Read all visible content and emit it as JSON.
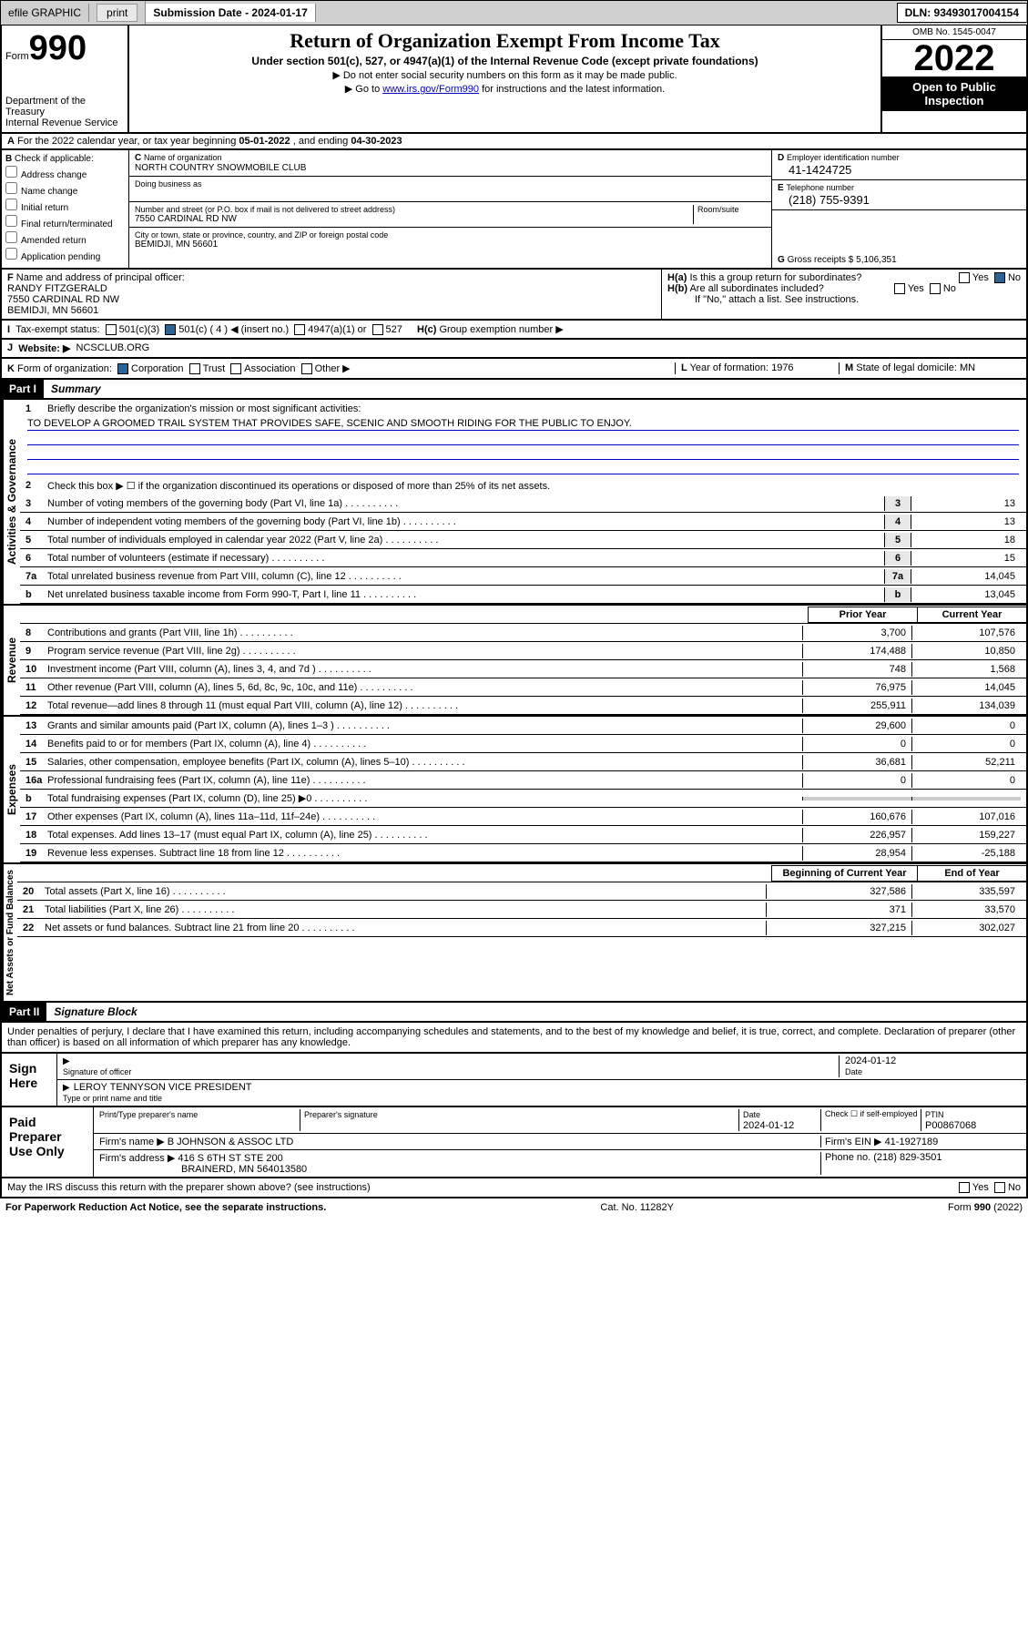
{
  "top": {
    "efile": "efile GRAPHIC",
    "print": "print",
    "submission": "Submission Date - 2024-01-17",
    "dln": "DLN: 93493017004154"
  },
  "header": {
    "form_word": "Form",
    "form_num": "990",
    "title": "Return of Organization Exempt From Income Tax",
    "subtitle": "Under section 501(c), 527, or 4947(a)(1) of the Internal Revenue Code (except private foundations)",
    "instr1": "▶ Do not enter social security numbers on this form as it may be made public.",
    "instr2_pre": "▶ Go to ",
    "instr2_link": "www.irs.gov/Form990",
    "instr2_post": " for instructions and the latest information.",
    "dept": "Department of the Treasury",
    "irs": "Internal Revenue Service",
    "omb": "OMB No. 1545-0047",
    "year": "2022",
    "inspection": "Open to Public Inspection"
  },
  "A": {
    "label": "For the 2022 calendar year, or tax year beginning ",
    "begin": "05-01-2022",
    "mid": " , and ending ",
    "end": "04-30-2023"
  },
  "B": {
    "label": "Check if applicable:",
    "opts": [
      "Address change",
      "Name change",
      "Initial return",
      "Final return/terminated",
      "Amended return",
      "Application pending"
    ]
  },
  "C": {
    "name_lbl": "Name of organization",
    "name": "NORTH COUNTRY SNOWMOBILE CLUB",
    "dba_lbl": "Doing business as",
    "street_lbl": "Number and street (or P.O. box if mail is not delivered to street address)",
    "room_lbl": "Room/suite",
    "street": "7550 CARDINAL RD NW",
    "city_lbl": "City or town, state or province, country, and ZIP or foreign postal code",
    "city": "BEMIDJI, MN  56601"
  },
  "D": {
    "lbl": "Employer identification number",
    "val": "41-1424725"
  },
  "E": {
    "lbl": "Telephone number",
    "val": "(218) 755-9391"
  },
  "G": {
    "lbl": "Gross receipts $",
    "val": "5,106,351"
  },
  "F": {
    "lbl": "Name and address of principal officer:",
    "name": "RANDY FITZGERALD",
    "street": "7550 CARDINAL RD NW",
    "city": "BEMIDJI, MN  56601"
  },
  "H": {
    "a": "Is this a group return for subordinates?",
    "b": "Are all subordinates included?",
    "b2": "If \"No,\" attach a list. See instructions.",
    "c": "Group exemption number ▶"
  },
  "I": {
    "lbl": "Tax-exempt status:",
    "opts": [
      "501(c)(3)",
      "501(c) ( 4 ) ◀ (insert no.)",
      "4947(a)(1) or",
      "527"
    ]
  },
  "J": {
    "lbl": "Website: ▶",
    "val": "NCSCLUB.ORG"
  },
  "K": {
    "lbl": "Form of organization:",
    "opts": [
      "Corporation",
      "Trust",
      "Association",
      "Other ▶"
    ]
  },
  "L": {
    "lbl": "Year of formation:",
    "val": "1976"
  },
  "M": {
    "lbl": "State of legal domicile:",
    "val": "MN"
  },
  "part1": {
    "hdr": "Part I",
    "title": "Summary",
    "q1": "Briefly describe the organization's mission or most significant activities:",
    "mission": "TO DEVELOP A GROOMED TRAIL SYSTEM THAT PROVIDES SAFE, SCENIC AND SMOOTH RIDING FOR THE PUBLIC TO ENJOY.",
    "q2": "Check this box ▶ ☐  if the organization discontinued its operations or disposed of more than 25% of its net assets.",
    "vert1": "Activities & Governance",
    "vert2": "Revenue",
    "vert3": "Expenses",
    "vert4": "Net Assets or Fund Balances",
    "col_prior": "Prior Year",
    "col_current": "Current Year",
    "col_begin": "Beginning of Current Year",
    "col_end": "End of Year",
    "lines_gov": [
      {
        "n": "3",
        "t": "Number of voting members of the governing body (Part VI, line 1a)",
        "v": "13"
      },
      {
        "n": "4",
        "t": "Number of independent voting members of the governing body (Part VI, line 1b)",
        "v": "13"
      },
      {
        "n": "5",
        "t": "Total number of individuals employed in calendar year 2022 (Part V, line 2a)",
        "v": "18"
      },
      {
        "n": "6",
        "t": "Total number of volunteers (estimate if necessary)",
        "v": "15"
      },
      {
        "n": "7a",
        "t": "Total unrelated business revenue from Part VIII, column (C), line 12",
        "v": "14,045"
      },
      {
        "n": "b",
        "t": "Net unrelated business taxable income from Form 990-T, Part I, line 11",
        "v": "13,045"
      }
    ],
    "lines_rev": [
      {
        "n": "8",
        "t": "Contributions and grants (Part VIII, line 1h)",
        "p": "3,700",
        "c": "107,576"
      },
      {
        "n": "9",
        "t": "Program service revenue (Part VIII, line 2g)",
        "p": "174,488",
        "c": "10,850"
      },
      {
        "n": "10",
        "t": "Investment income (Part VIII, column (A), lines 3, 4, and 7d )",
        "p": "748",
        "c": "1,568"
      },
      {
        "n": "11",
        "t": "Other revenue (Part VIII, column (A), lines 5, 6d, 8c, 9c, 10c, and 11e)",
        "p": "76,975",
        "c": "14,045"
      },
      {
        "n": "12",
        "t": "Total revenue—add lines 8 through 11 (must equal Part VIII, column (A), line 12)",
        "p": "255,911",
        "c": "134,039"
      }
    ],
    "lines_exp": [
      {
        "n": "13",
        "t": "Grants and similar amounts paid (Part IX, column (A), lines 1–3 )",
        "p": "29,600",
        "c": "0"
      },
      {
        "n": "14",
        "t": "Benefits paid to or for members (Part IX, column (A), line 4)",
        "p": "0",
        "c": "0"
      },
      {
        "n": "15",
        "t": "Salaries, other compensation, employee benefits (Part IX, column (A), lines 5–10)",
        "p": "36,681",
        "c": "52,211"
      },
      {
        "n": "16a",
        "t": "Professional fundraising fees (Part IX, column (A), line 11e)",
        "p": "0",
        "c": "0"
      },
      {
        "n": "b",
        "t": "Total fundraising expenses (Part IX, column (D), line 25) ▶0",
        "p": "",
        "c": ""
      },
      {
        "n": "17",
        "t": "Other expenses (Part IX, column (A), lines 11a–11d, 11f–24e)",
        "p": "160,676",
        "c": "107,016"
      },
      {
        "n": "18",
        "t": "Total expenses. Add lines 13–17 (must equal Part IX, column (A), line 25)",
        "p": "226,957",
        "c": "159,227"
      },
      {
        "n": "19",
        "t": "Revenue less expenses. Subtract line 18 from line 12",
        "p": "28,954",
        "c": "-25,188"
      }
    ],
    "lines_net": [
      {
        "n": "20",
        "t": "Total assets (Part X, line 16)",
        "p": "327,586",
        "c": "335,597"
      },
      {
        "n": "21",
        "t": "Total liabilities (Part X, line 26)",
        "p": "371",
        "c": "33,570"
      },
      {
        "n": "22",
        "t": "Net assets or fund balances. Subtract line 21 from line 20",
        "p": "327,215",
        "c": "302,027"
      }
    ]
  },
  "part2": {
    "hdr": "Part II",
    "title": "Signature Block",
    "penalty": "Under penalties of perjury, I declare that I have examined this return, including accompanying schedules and statements, and to the best of my knowledge and belief, it is true, correct, and complete. Declaration of preparer (other than officer) is based on all information of which preparer has any knowledge.",
    "sign_here": "Sign Here",
    "sig_officer": "Signature of officer",
    "date": "Date",
    "sig_date": "2024-01-12",
    "officer_name": "LEROY TENNYSON  VICE PRESIDENT",
    "type_name": "Type or print name and title",
    "paid": "Paid Preparer Use Only",
    "prep_name_lbl": "Print/Type preparer's name",
    "prep_sig_lbl": "Preparer's signature",
    "prep_date_lbl": "Date",
    "prep_date": "2024-01-12",
    "check_self": "Check ☐ if self-employed",
    "ptin_lbl": "PTIN",
    "ptin": "P00867068",
    "firm_name_lbl": "Firm's name    ▶",
    "firm_name": "B JOHNSON & ASSOC LTD",
    "firm_ein_lbl": "Firm's EIN ▶",
    "firm_ein": "41-1927189",
    "firm_addr_lbl": "Firm's address ▶",
    "firm_addr1": "416 S 6TH ST STE 200",
    "firm_addr2": "BRAINERD, MN  564013580",
    "phone_lbl": "Phone no.",
    "phone": "(218) 829-3501",
    "discuss": "May the IRS discuss this return with the preparer shown above? (see instructions)"
  },
  "footer": {
    "pra": "For Paperwork Reduction Act Notice, see the separate instructions.",
    "cat": "Cat. No. 11282Y",
    "form": "Form 990 (2022)"
  }
}
